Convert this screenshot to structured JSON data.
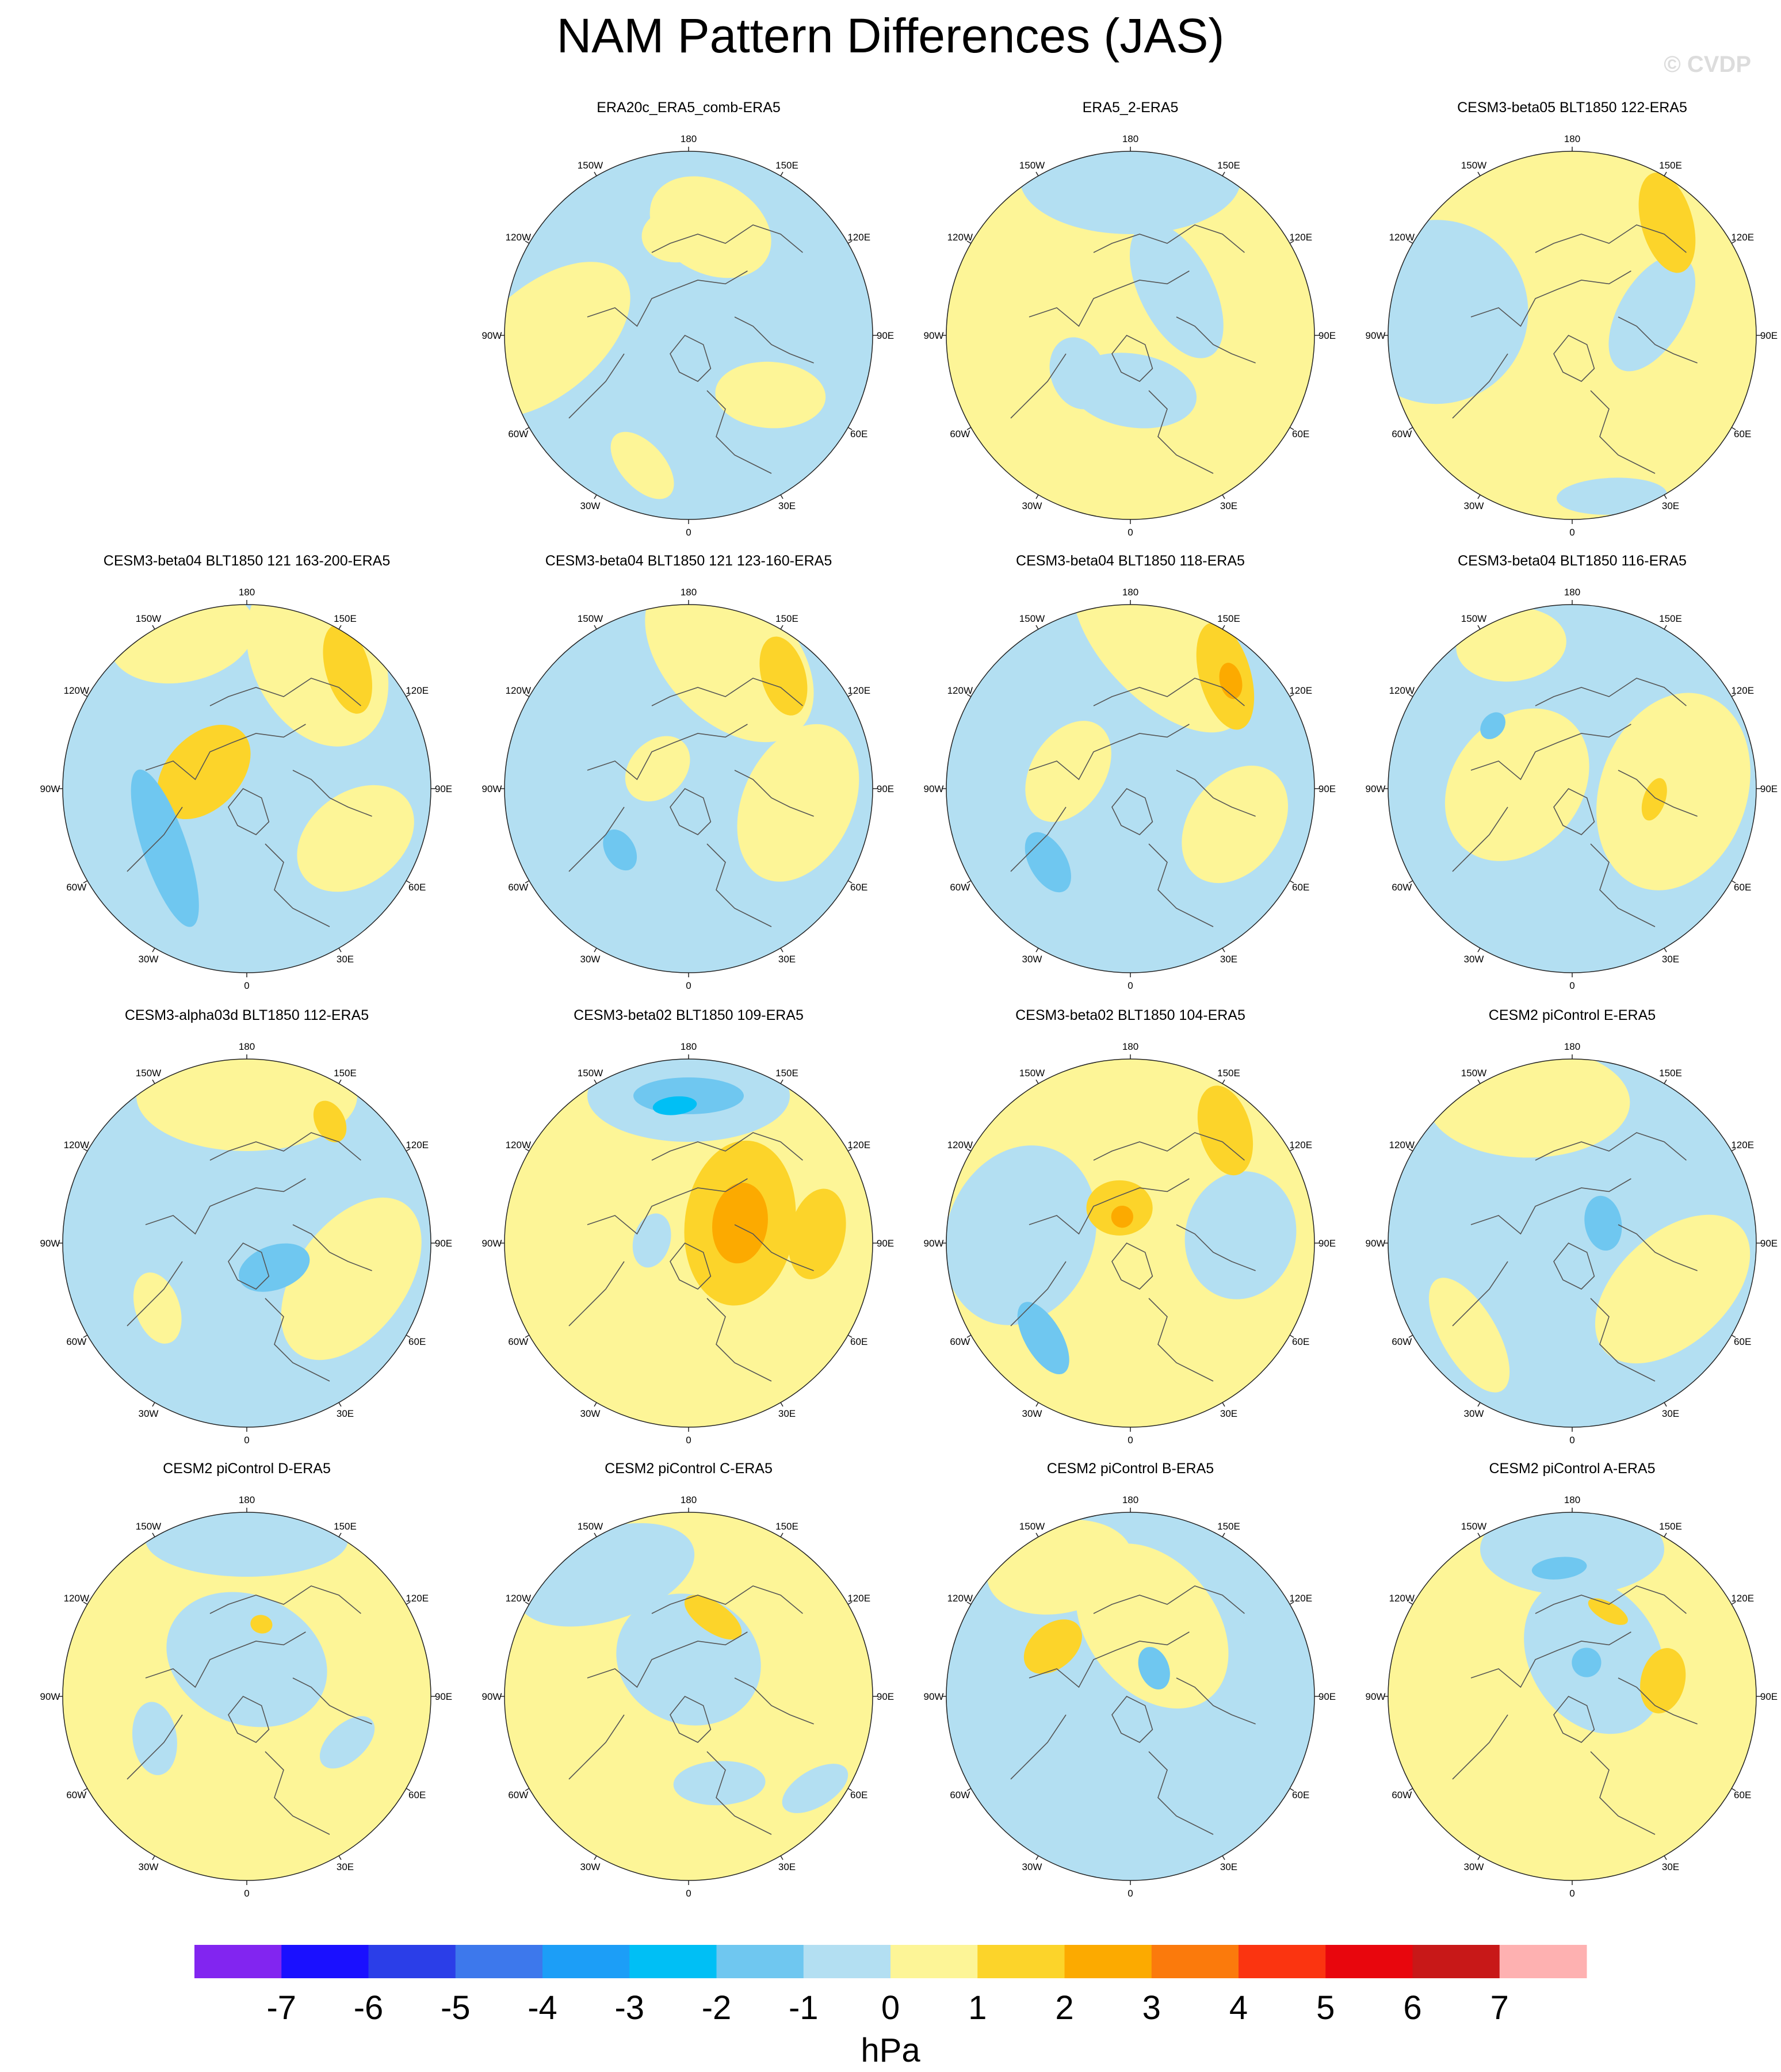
{
  "title": "NAM Pattern Differences (JAS)",
  "watermark": "© CVDP",
  "longitude_labels": [
    "180",
    "150E",
    "120E",
    "90E",
    "60E",
    "30E",
    "0",
    "30W",
    "60W",
    "90W",
    "120W",
    "150W"
  ],
  "colors": {
    "ocean_blue_light": "#b3dff2",
    "yellow_light": "#fdf597",
    "yellow": "#fcd42a",
    "orange": "#fcaa00",
    "blue_mid": "#6fc7f0",
    "cyan": "#00bff5"
  },
  "panels": [
    {
      "title": "ERA20c_ERA5_comb-ERA5",
      "base": "blue",
      "blobs": [
        [
          0.78,
          -1.6,
          0.55,
          0.3,
          0.9,
          "yellow_light"
        ],
        [
          0.6,
          0.2,
          0.35,
          0.25,
          0.3,
          "yellow_light"
        ],
        [
          0.75,
          -2.8,
          0.22,
          0.12,
          0.5,
          "yellow_light"
        ],
        [
          0.55,
          2.2,
          0.3,
          0.18,
          1.0,
          "yellow_light"
        ],
        [
          0.55,
          -0.1,
          0.2,
          0.15,
          0,
          "yellow_light"
        ]
      ]
    },
    {
      "title": "ERA5_2-ERA5",
      "base": "yellow",
      "blobs": [
        [
          0.85,
          0.0,
          0.6,
          0.3,
          0,
          "blue"
        ],
        [
          0.35,
          0.8,
          0.4,
          0.2,
          0.3,
          "blue"
        ],
        [
          0.3,
          3.1,
          0.35,
          0.2,
          0.2,
          "blue"
        ],
        [
          0.35,
          -2.2,
          0.2,
          0.15,
          0.3,
          "blue"
        ]
      ]
    },
    {
      "title": "CESM3-beta05 BLT1850 122-ERA5",
      "base": "yellow",
      "blobs": [
        [
          0.75,
          -1.4,
          0.5,
          0.5,
          0.5,
          "blue"
        ],
        [
          0.45,
          1.3,
          0.35,
          0.18,
          0.8,
          "blue"
        ],
        [
          0.8,
          0.7,
          0.28,
          0.14,
          0.6,
          "yellow"
        ],
        [
          0.9,
          2.9,
          0.3,
          0.1,
          0.2,
          "blue"
        ]
      ]
    },
    {
      "title": "CESM3-beta04 BLT1850 121 163-200-ERA5",
      "base": "blue",
      "blobs": [
        [
          0.8,
          0.5,
          0.5,
          0.35,
          0.6,
          "yellow_light"
        ],
        [
          0.9,
          -0.4,
          0.4,
          0.25,
          0.2,
          "yellow_light"
        ],
        [
          0.65,
          2.0,
          0.35,
          0.25,
          0.5,
          "yellow_light"
        ],
        [
          0.85,
          0.7,
          0.25,
          0.12,
          0.6,
          "yellow"
        ],
        [
          0.25,
          -1.2,
          0.3,
          0.2,
          0.4,
          "yellow"
        ],
        [
          0.55,
          -2.2,
          0.45,
          0.12,
          0.3,
          "blue_mid"
        ]
      ]
    },
    {
      "title": "CESM3-beta04 BLT1850 121 123-160-ERA5",
      "base": "blue",
      "blobs": [
        [
          0.75,
          0.3,
          0.55,
          0.35,
          0.5,
          "yellow_light"
        ],
        [
          0.6,
          1.7,
          0.45,
          0.3,
          0.3,
          "yellow_light"
        ],
        [
          0.8,
          0.7,
          0.22,
          0.12,
          0.6,
          "yellow"
        ],
        [
          0.5,
          -2.3,
          0.12,
          0.08,
          0.2,
          "blue_mid"
        ],
        [
          0.2,
          -1.0,
          0.2,
          0.15,
          0.2,
          "yellow_light"
        ]
      ]
    },
    {
      "title": "CESM3-beta04 BLT1850 118-ERA5",
      "base": "blue",
      "blobs": [
        [
          0.8,
          0.2,
          0.6,
          0.3,
          0.6,
          "yellow_light"
        ],
        [
          0.35,
          -1.3,
          0.3,
          0.2,
          0.3,
          "yellow_light"
        ],
        [
          0.6,
          1.9,
          0.35,
          0.25,
          0.3,
          "yellow_light"
        ],
        [
          0.8,
          0.7,
          0.3,
          0.14,
          0.6,
          "yellow"
        ],
        [
          0.8,
          0.75,
          0.1,
          0.06,
          0.6,
          "orange"
        ],
        [
          0.6,
          -2.3,
          0.18,
          0.1,
          0.2,
          "blue_mid"
        ]
      ]
    },
    {
      "title": "CESM3-beta04 BLT1850 116-ERA5",
      "base": "blue",
      "blobs": [
        [
          0.55,
          1.6,
          0.55,
          0.4,
          0.3,
          "yellow_light"
        ],
        [
          0.3,
          -1.5,
          0.45,
          0.35,
          0.6,
          "yellow_light"
        ],
        [
          0.85,
          -0.4,
          0.3,
          0.2,
          0.3,
          "yellow_light"
        ],
        [
          0.45,
          1.7,
          0.12,
          0.06,
          0.2,
          "yellow"
        ],
        [
          0.55,
          -0.9,
          0.08,
          0.06,
          0,
          "blue_mid"
        ]
      ]
    },
    {
      "title": "CESM3-alpha03d BLT1850 112-ERA5",
      "base": "blue",
      "blobs": [
        [
          0.8,
          0.0,
          0.6,
          0.3,
          0,
          "yellow_light"
        ],
        [
          0.6,
          1.9,
          0.5,
          0.3,
          0.3,
          "yellow_light"
        ],
        [
          0.8,
          0.6,
          0.12,
          0.08,
          0.5,
          "yellow"
        ],
        [
          0.2,
          2.3,
          0.2,
          0.12,
          0.5,
          "blue_mid"
        ],
        [
          0.6,
          -2.2,
          0.2,
          0.12,
          0.3,
          "yellow_light"
        ]
      ]
    },
    {
      "title": "CESM3-beta02 BLT1850 109-ERA5",
      "base": "yellow",
      "blobs": [
        [
          0.8,
          0.0,
          0.55,
          0.25,
          0,
          "blue"
        ],
        [
          0.8,
          0.0,
          0.3,
          0.1,
          0,
          "blue_mid"
        ],
        [
          0.75,
          -0.1,
          0.12,
          0.05,
          0,
          "cyan"
        ],
        [
          0.3,
          1.2,
          0.45,
          0.3,
          0.5,
          "yellow"
        ],
        [
          0.3,
          1.2,
          0.22,
          0.15,
          0.5,
          "orange"
        ],
        [
          0.7,
          1.5,
          0.25,
          0.15,
          0.3,
          "yellow"
        ],
        [
          0.2,
          -1.5,
          0.15,
          0.1,
          0.2,
          "blue"
        ]
      ]
    },
    {
      "title": "CESM3-beta02 BLT1850 104-ERA5",
      "base": "yellow",
      "blobs": [
        [
          0.6,
          -1.5,
          0.5,
          0.4,
          0.3,
          "blue"
        ],
        [
          0.6,
          1.5,
          0.35,
          0.3,
          0.3,
          "blue"
        ],
        [
          0.7,
          -2.4,
          0.22,
          0.1,
          0.3,
          "blue_mid"
        ],
        [
          0.8,
          0.7,
          0.25,
          0.14,
          0.6,
          "yellow"
        ],
        [
          0.2,
          -0.3,
          0.18,
          0.15,
          0.3,
          "yellow"
        ],
        [
          0.15,
          -0.3,
          0.06,
          0.06,
          0,
          "orange"
        ]
      ]
    },
    {
      "title": "CESM2 piControl E-ERA5",
      "base": "blue",
      "blobs": [
        [
          0.8,
          -0.3,
          0.55,
          0.3,
          0.3,
          "yellow_light"
        ],
        [
          0.6,
          2.0,
          0.5,
          0.3,
          0.4,
          "yellow_light"
        ],
        [
          0.75,
          -2.3,
          0.35,
          0.15,
          0.2,
          "yellow_light"
        ],
        [
          0.2,
          1.0,
          0.15,
          0.1,
          0.4,
          "blue_mid"
        ]
      ]
    },
    {
      "title": "CESM2 piControl D-ERA5",
      "base": "yellow",
      "blobs": [
        [
          0.85,
          0.0,
          0.55,
          0.2,
          0,
          "blue"
        ],
        [
          0.2,
          0.0,
          0.45,
          0.35,
          0.4,
          "blue"
        ],
        [
          0.55,
          -2.0,
          0.2,
          0.12,
          0.3,
          "blue"
        ],
        [
          0.6,
          2.0,
          0.18,
          0.1,
          0.4,
          "blue"
        ],
        [
          0.4,
          0.2,
          0.06,
          0.05,
          0,
          "yellow"
        ]
      ]
    },
    {
      "title": "CESM2 piControl C-ERA5",
      "base": "yellow",
      "blobs": [
        [
          0.8,
          -0.6,
          0.5,
          0.25,
          0.3,
          "blue"
        ],
        [
          0.2,
          0.0,
          0.4,
          0.35,
          0.4,
          "blue"
        ],
        [
          0.45,
          0.3,
          0.18,
          0.08,
          0.3,
          "yellow"
        ],
        [
          0.5,
          3.0,
          0.15,
          0.08,
          0.3,
          "yellow"
        ],
        [
          0.5,
          2.8,
          0.25,
          0.12,
          0.3,
          "blue"
        ],
        [
          0.85,
          2.2,
          0.2,
          0.1,
          0.4,
          "blue"
        ]
      ]
    },
    {
      "title": "CESM2 piControl B-ERA5",
      "base": "blue",
      "blobs": [
        [
          0.4,
          0.3,
          0.5,
          0.35,
          0.6,
          "yellow_light"
        ],
        [
          0.8,
          -0.5,
          0.4,
          0.25,
          0.3,
          "yellow_light"
        ],
        [
          0.5,
          -1.0,
          0.18,
          0.12,
          0.3,
          "yellow"
        ],
        [
          0.2,
          0.7,
          0.12,
          0.08,
          0.5,
          "blue_mid"
        ]
      ]
    },
    {
      "title": "CESM2 piControl A-ERA5",
      "base": "yellow",
      "blobs": [
        [
          0.8,
          0.0,
          0.5,
          0.25,
          0,
          "blue"
        ],
        [
          0.25,
          0.5,
          0.45,
          0.35,
          0.5,
          "blue"
        ],
        [
          0.7,
          -0.1,
          0.15,
          0.06,
          0,
          "blue_mid"
        ],
        [
          0.5,
          1.4,
          0.18,
          0.12,
          0.4,
          "yellow"
        ],
        [
          0.2,
          0.4,
          0.08,
          0.08,
          0.2,
          "blue_mid"
        ],
        [
          0.5,
          0.4,
          0.12,
          0.05,
          0.1,
          "yellow"
        ]
      ]
    }
  ],
  "colorbar": {
    "unit": "hPa",
    "tick_labels": [
      "-7",
      "-6",
      "-5",
      "-4",
      "-3",
      "-2",
      "-1",
      "0",
      "1",
      "2",
      "3",
      "4",
      "5",
      "6",
      "7"
    ],
    "bins": [
      "#8225f0",
      "#1a10ff",
      "#2b3ee8",
      "#3d78ec",
      "#1c9ef7",
      "#00bff5",
      "#6fc7f0",
      "#b3dff2",
      "#fdf597",
      "#fcd42a",
      "#fcaa00",
      "#fb7a0c",
      "#fb3410",
      "#e8060d",
      "#c81818",
      "#feb1b1"
    ]
  }
}
